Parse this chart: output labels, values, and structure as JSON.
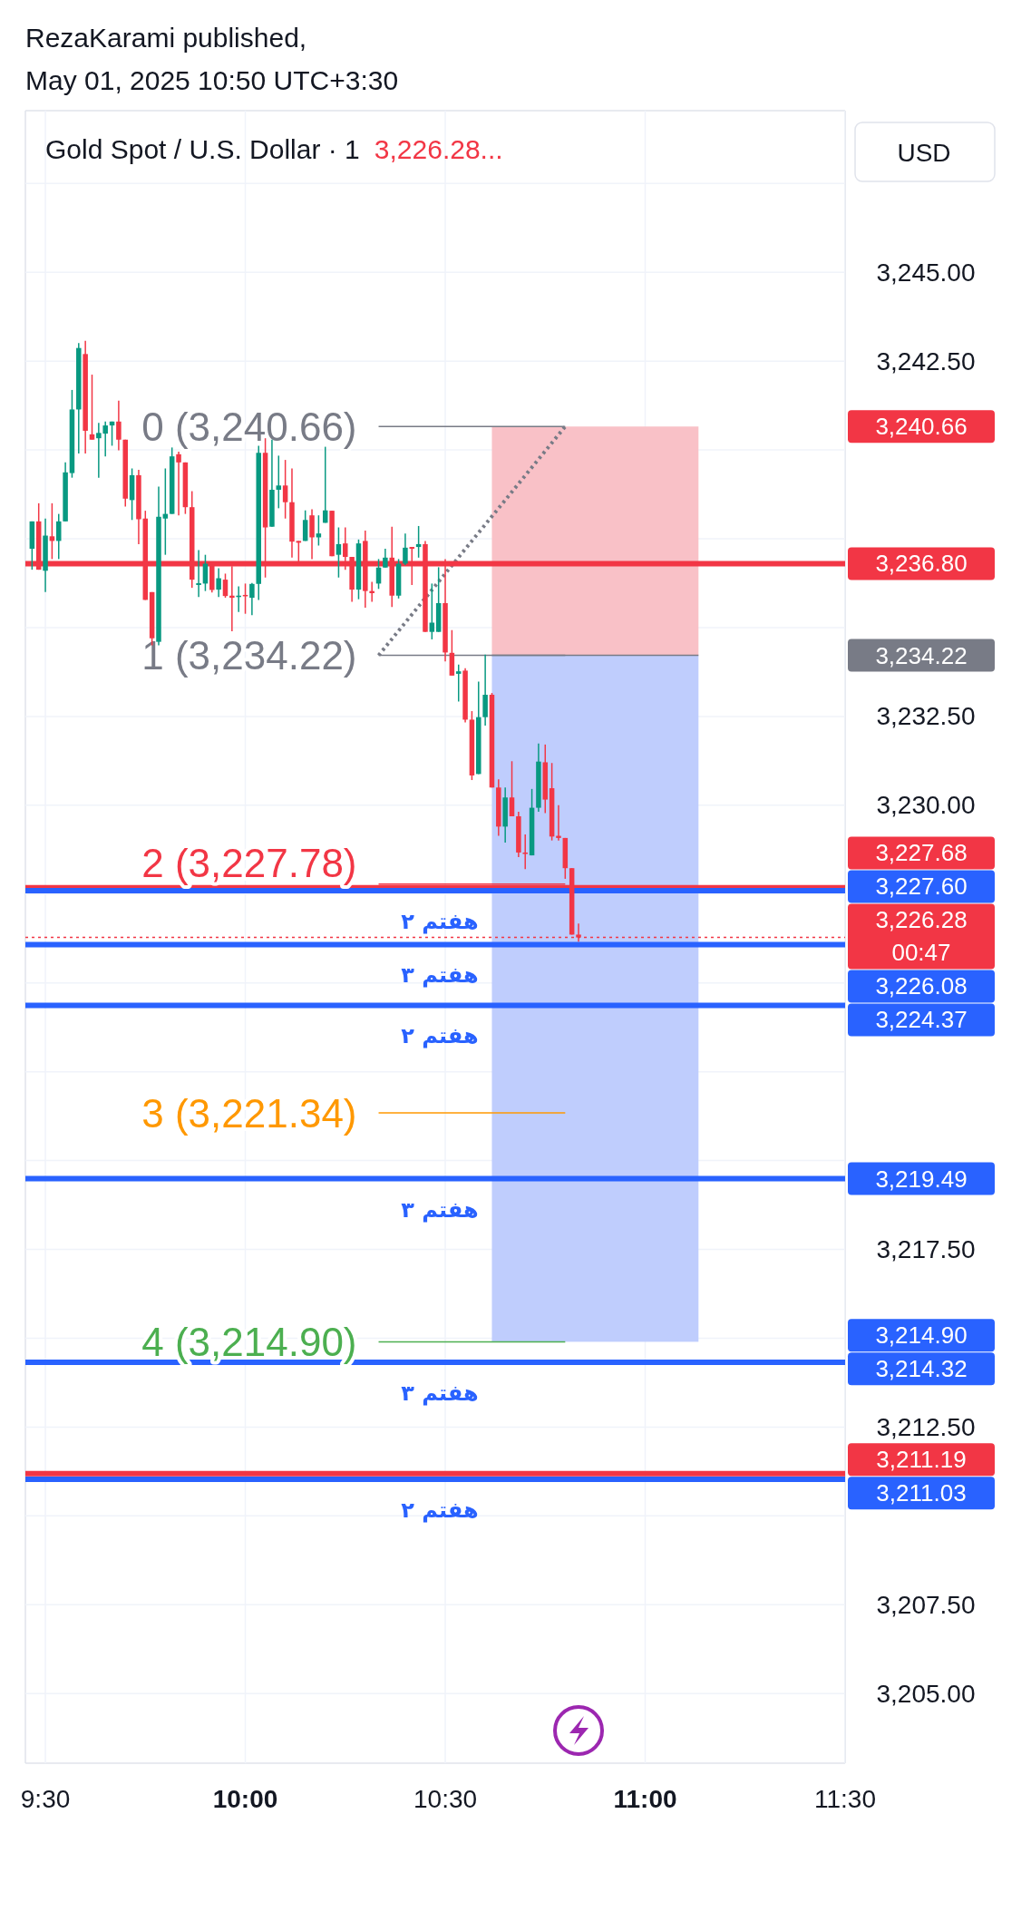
{
  "chart_data": {
    "type": "candlestick",
    "title": "Gold Spot / U.S. Dollar · 1",
    "subtitle": "3,226.28...",
    "ylabel": "USD",
    "annotations": [
      "RezaKarami published,",
      "May 01, 2025 10:50 UTC+3:30",
      {
        "text": "0 (3,240.66)",
        "x": "2025-05-01T10:20",
        "y": 3240.66
      },
      {
        "text": "1 (3,234.22)",
        "x": "2025-05-01T10:20",
        "y": 3234.22
      },
      {
        "text": "2 (3,227.78)",
        "x": "2025-05-01T10:20",
        "y": 3227.78
      },
      {
        "text": "3 (3,221.34)",
        "x": "2025-05-01T10:20",
        "y": 3221.34
      },
      {
        "text": "4 (3,214.90)",
        "x": "2025-05-01T10:20",
        "y": 3214.9
      },
      {
        "text": "هفتم ۲",
        "x": "2025-05-01T10:35",
        "y": 3227.6
      },
      {
        "text": "هفتم ۳",
        "x": "2025-05-01T10:35",
        "y": 3226.08
      },
      {
        "text": "هفتم ۲",
        "x": "2025-05-01T10:35",
        "y": 3224.37
      },
      {
        "text": "هفتم ۳",
        "x": "2025-05-01T10:35",
        "y": 3219.49
      },
      {
        "text": "هفتم ۳",
        "x": "2025-05-01T10:35",
        "y": 3214.32
      },
      {
        "text": "هفتم ۲",
        "x": "2025-05-01T10:35",
        "y": 3211.03
      }
    ],
    "xlim": [
      "2025-05-01T09:27",
      "2025-05-01T11:30"
    ],
    "ylim": [
      3203.04,
      3249.55
    ],
    "xticks": [
      {
        "value": "2025-05-01T09:30",
        "label": "9:30"
      },
      {
        "value": "2025-05-01T10:00",
        "label": "10:00"
      },
      {
        "value": "2025-05-01T10:30",
        "label": "10:30"
      },
      {
        "value": "2025-05-01T11:00",
        "label": "11:00"
      },
      {
        "value": "2025-05-01T11:30",
        "label": "11:30"
      }
    ],
    "yticks": [
      {
        "value": 3205,
        "label": "3,205.00"
      },
      {
        "value": 3207.5,
        "label": "3,207.50"
      },
      {
        "value": 3210,
        "label": null
      },
      {
        "value": 3212.5,
        "label": "3,212.50"
      },
      {
        "value": 3215,
        "label": null
      },
      {
        "value": 3217.5,
        "label": "3,217.50"
      },
      {
        "value": 3220,
        "label": null
      },
      {
        "value": 3222.5,
        "label": null
      },
      {
        "value": 3225,
        "label": null
      },
      {
        "value": 3227.5,
        "label": null
      },
      {
        "value": 3230,
        "label": "3,230.00"
      },
      {
        "value": 3232.5,
        "label": "3,232.50"
      },
      {
        "value": 3235,
        "label": null
      },
      {
        "value": 3237.5,
        "label": null
      },
      {
        "value": 3240,
        "label": null
      },
      {
        "value": 3242.5,
        "label": "3,242.50"
      },
      {
        "value": 3245,
        "label": "3,245.00"
      },
      {
        "value": 3247.5,
        "label": null
      }
    ],
    "grid": true,
    "x": [
      "2025-05-01T09:28",
      "2025-05-01T09:29",
      "2025-05-01T09:30",
      "2025-05-01T09:31",
      "2025-05-01T09:32",
      "2025-05-01T09:33",
      "2025-05-01T09:34",
      "2025-05-01T09:35",
      "2025-05-01T09:36",
      "2025-05-01T09:37",
      "2025-05-01T09:38",
      "2025-05-01T09:39",
      "2025-05-01T09:40",
      "2025-05-01T09:41",
      "2025-05-01T09:42",
      "2025-05-01T09:43",
      "2025-05-01T09:44",
      "2025-05-01T09:45",
      "2025-05-01T09:46",
      "2025-05-01T09:47",
      "2025-05-01T09:48",
      "2025-05-01T09:49",
      "2025-05-01T09:50",
      "2025-05-01T09:51",
      "2025-05-01T09:52",
      "2025-05-01T09:53",
      "2025-05-01T09:54",
      "2025-05-01T09:55",
      "2025-05-01T09:56",
      "2025-05-01T09:57",
      "2025-05-01T09:58",
      "2025-05-01T09:59",
      "2025-05-01T10:00",
      "2025-05-01T10:01",
      "2025-05-01T10:02",
      "2025-05-01T10:03",
      "2025-05-01T10:04",
      "2025-05-01T10:05",
      "2025-05-01T10:06",
      "2025-05-01T10:07",
      "2025-05-01T10:08",
      "2025-05-01T10:09",
      "2025-05-01T10:10",
      "2025-05-01T10:11",
      "2025-05-01T10:12",
      "2025-05-01T10:13",
      "2025-05-01T10:14",
      "2025-05-01T10:15",
      "2025-05-01T10:16",
      "2025-05-01T10:17",
      "2025-05-01T10:18",
      "2025-05-01T10:19",
      "2025-05-01T10:20",
      "2025-05-01T10:21",
      "2025-05-01T10:22",
      "2025-05-01T10:23",
      "2025-05-01T10:24",
      "2025-05-01T10:25",
      "2025-05-01T10:26",
      "2025-05-01T10:27",
      "2025-05-01T10:28",
      "2025-05-01T10:29",
      "2025-05-01T10:30",
      "2025-05-01T10:31",
      "2025-05-01T10:32",
      "2025-05-01T10:33",
      "2025-05-01T10:34",
      "2025-05-01T10:35",
      "2025-05-01T10:36",
      "2025-05-01T10:37",
      "2025-05-01T10:38",
      "2025-05-01T10:39",
      "2025-05-01T10:40",
      "2025-05-01T10:41",
      "2025-05-01T10:42",
      "2025-05-01T10:43",
      "2025-05-01T10:44",
      "2025-05-01T10:45",
      "2025-05-01T10:46",
      "2025-05-01T10:47",
      "2025-05-01T10:48",
      "2025-05-01T10:49",
      "2025-05-01T10:50"
    ],
    "ohlc": [
      [
        3237.22,
        3237.99,
        3236.63,
        3237.99
      ],
      [
        3237.99,
        3238.5,
        3236.63,
        3236.63
      ],
      [
        3236.6,
        3238.07,
        3236.0,
        3237.59
      ],
      [
        3237.57,
        3238.5,
        3236.93,
        3237.44
      ],
      [
        3237.44,
        3238.2,
        3236.93,
        3237.99
      ],
      [
        3237.99,
        3239.65,
        3237.99,
        3239.37
      ],
      [
        3239.35,
        3241.69,
        3239.22,
        3241.14
      ],
      [
        3241.14,
        3243.01,
        3239.9,
        3242.87
      ],
      [
        3242.7,
        3243.07,
        3239.9,
        3240.54
      ],
      [
        3240.44,
        3242.12,
        3240.29,
        3240.29
      ],
      [
        3240.33,
        3240.76,
        3239.22,
        3240.48
      ],
      [
        3240.46,
        3240.8,
        3239.82,
        3240.69
      ],
      [
        3240.69,
        3240.8,
        3240.12,
        3240.8
      ],
      [
        3240.8,
        3241.39,
        3239.99,
        3240.29
      ],
      [
        3240.29,
        3240.29,
        3238.41,
        3238.63
      ],
      [
        3238.59,
        3239.48,
        3238.03,
        3239.29
      ],
      [
        3239.29,
        3239.44,
        3237.35,
        3238.05
      ],
      [
        3238.07,
        3238.29,
        3235.78,
        3235.78
      ],
      [
        3236.0,
        3236.0,
        3234.5,
        3234.7
      ],
      [
        3234.6,
        3238.97,
        3234.5,
        3238.12
      ],
      [
        3238.07,
        3239.48,
        3237.05,
        3238.2
      ],
      [
        3238.2,
        3240.07,
        3238.2,
        3239.82
      ],
      [
        3239.88,
        3239.95,
        3238.16,
        3239.65
      ],
      [
        3239.65,
        3239.65,
        3238.2,
        3238.39
      ],
      [
        3238.39,
        3238.84,
        3236.12,
        3236.35
      ],
      [
        3236.2,
        3237.18,
        3235.86,
        3236.25
      ],
      [
        3236.24,
        3237.05,
        3236.03,
        3236.8
      ],
      [
        3236.77,
        3236.77,
        3235.99,
        3236.06
      ],
      [
        3236.07,
        3236.67,
        3235.86,
        3236.39
      ],
      [
        3236.35,
        3236.52,
        3235.84,
        3235.89
      ],
      [
        3235.9,
        3236.73,
        3234.9,
        3235.84
      ],
      [
        3235.86,
        3236.16,
        3235.44,
        3235.9
      ],
      [
        3235.92,
        3236.24,
        3235.39,
        3235.89
      ],
      [
        3235.84,
        3236.26,
        3235.35,
        3236.23
      ],
      [
        3236.23,
        3240.12,
        3235.78,
        3239.92
      ],
      [
        3239.92,
        3240.33,
        3236.41,
        3237.82
      ],
      [
        3237.84,
        3240.29,
        3237.84,
        3238.88
      ],
      [
        3238.88,
        3239.84,
        3238.36,
        3239.0
      ],
      [
        3239.0,
        3239.72,
        3238.07,
        3238.53
      ],
      [
        3238.53,
        3239.48,
        3236.97,
        3237.42
      ],
      [
        3237.44,
        3237.44,
        3236.74,
        3237.39
      ],
      [
        3237.44,
        3238.3,
        3237.44,
        3238.03
      ],
      [
        3238.16,
        3238.33,
        3236.93,
        3237.54
      ],
      [
        3237.54,
        3238.16,
        3237.31,
        3237.65
      ],
      [
        3237.95,
        3240.09,
        3237.95,
        3238.3
      ],
      [
        3238.29,
        3238.29,
        3237.01,
        3237.01
      ],
      [
        3237.05,
        3237.82,
        3236.41,
        3237.35
      ],
      [
        3237.37,
        3237.82,
        3236.63,
        3236.99
      ],
      [
        3236.99,
        3236.99,
        3235.73,
        3236.07
      ],
      [
        3236.07,
        3237.48,
        3235.8,
        3237.37
      ],
      [
        3237.44,
        3237.73,
        3235.56,
        3236.03
      ],
      [
        3236.03,
        3236.29,
        3235.73,
        3235.97
      ],
      [
        3236.24,
        3236.93,
        3236.09,
        3236.69
      ],
      [
        3236.69,
        3237.22,
        3236.69,
        3236.97
      ],
      [
        3236.97,
        3237.84,
        3235.58,
        3235.9
      ],
      [
        3235.9,
        3236.93,
        3235.82,
        3236.8
      ],
      [
        3236.8,
        3237.65,
        3236.76,
        3237.25
      ],
      [
        3237.27,
        3237.27,
        3236.2,
        3237.22
      ],
      [
        3237.27,
        3237.86,
        3236.97,
        3237.35
      ],
      [
        3237.35,
        3237.44,
        3234.88,
        3234.88
      ],
      [
        3234.88,
        3236.24,
        3234.67,
        3235.14
      ],
      [
        3234.88,
        3236.7,
        3234.88,
        3235.69
      ],
      [
        3235.69,
        3236.93,
        3234.05,
        3234.3
      ],
      [
        3234.29,
        3234.93,
        3233.65,
        3233.65
      ],
      [
        3233.7,
        3233.96,
        3232.92,
        3233.77
      ],
      [
        3233.79,
        3233.86,
        3232.33,
        3232.41
      ],
      [
        3232.41,
        3232.65,
        3230.71,
        3230.84
      ],
      [
        3230.88,
        3233.48,
        3230.88,
        3232.48
      ],
      [
        3232.48,
        3234.24,
        3232.24,
        3233.11
      ],
      [
        3233.11,
        3233.16,
        3230.5,
        3230.5
      ],
      [
        3230.5,
        3230.73,
        3229.14,
        3229.4
      ],
      [
        3229.4,
        3230.5,
        3228.95,
        3230.22
      ],
      [
        3230.22,
        3231.24,
        3229.69,
        3229.69
      ],
      [
        3229.69,
        3229.82,
        3228.54,
        3228.67
      ],
      [
        3228.67,
        3229.18,
        3228.2,
        3228.63
      ],
      [
        3228.59,
        3230.46,
        3228.59,
        3229.93
      ],
      [
        3229.93,
        3231.74,
        3229.82,
        3231.23
      ],
      [
        3231.21,
        3231.71,
        3229.78,
        3230.16
      ],
      [
        3230.48,
        3231.19,
        3229.01,
        3229.12
      ],
      [
        3229.14,
        3230.0,
        3229.01,
        3229.08
      ],
      [
        3229.08,
        3229.08,
        3227.93,
        3228.23
      ],
      [
        3228.23,
        3228.23,
        3226.36,
        3226.36
      ],
      [
        3226.36,
        3226.67,
        3226.16,
        3226.28
      ]
    ],
    "colors": [
      "#089981",
      "#f23645",
      "#089981",
      "#f23645",
      "#089981",
      "#089981",
      "#089981",
      "#089981",
      "#f23645",
      "#f23645",
      "#089981",
      "#089981",
      "#089981",
      "#f23645",
      "#f23645",
      "#089981",
      "#f23645",
      "#f23645",
      "#f23645",
      "#089981",
      "#089981",
      "#089981",
      "#f23645",
      "#f23645",
      "#f23645",
      "#089981",
      "#089981",
      "#f23645",
      "#089981",
      "#f23645",
      "#f23645",
      "#089981",
      "#f23645",
      "#089981",
      "#089981",
      "#f23645",
      "#089981",
      "#089981",
      "#f23645",
      "#f23645",
      "#f23645",
      "#089981",
      "#f23645",
      "#089981",
      "#089981",
      "#f23645",
      "#089981",
      "#f23645",
      "#f23645",
      "#089981",
      "#f23645",
      "#f23645",
      "#089981",
      "#089981",
      "#f23645",
      "#089981",
      "#089981",
      "#f23645",
      "#089981",
      "#f23645",
      "#089981",
      "#089981",
      "#f23645",
      "#f23645",
      "#089981",
      "#f23645",
      "#f23645",
      "#089981",
      "#089981",
      "#f23645",
      "#f23645",
      "#089981",
      "#f23645",
      "#f23645",
      "#f23645",
      "#089981",
      "#089981",
      "#f23645",
      "#f23645",
      "#f23645",
      "#f23645",
      "#f23645",
      "#f23645"
    ],
    "y2lim": [
      3203.04,
      3249.55
    ],
    "y2ticks": [
      {
        "value": 3240.66,
        "label": "3,240.66"
      },
      {
        "value": 3234.22,
        "label": "3,234.22"
      },
      {
        "value": 3214.9,
        "label": "3,214.90"
      }
    ],
    "series": [
      {
        "type": "bar",
        "x": [
          "2025-05-01T10:52:30"
        ],
        "base": [
          3234.22
        ],
        "values": [
          6.44
        ],
        "color": "#f9c1c7"
      },
      {
        "type": "bar",
        "x": [
          "2025-05-01T10:52:30"
        ],
        "base": [
          3214.9
        ],
        "values": [
          19.32
        ],
        "color": "#bfcdfd"
      },
      {
        "type": "line",
        "x": [
          "2025-05-01T10:37",
          "2025-05-01T11:08"
        ],
        "values": [
          3234.22,
          3234.22
        ],
        "color": "#787b86",
        "line_style": "solid"
      },
      {
        "type": "line",
        "x": [
          "2025-05-01T10:20",
          "2025-05-01T10:48"
        ],
        "values": [
          3234.22,
          3240.66
        ],
        "color": "#787b86",
        "line_style": "dotted"
      },
      {
        "type": "line",
        "x": [
          "2025-05-01T10:20",
          "2025-05-01T10:48"
        ],
        "values": [
          3240.66,
          3240.66
        ],
        "color": "#787b86",
        "line_style": "solid"
      },
      {
        "type": "line",
        "x": [
          "2025-05-01T10:20",
          "2025-05-01T10:48"
        ],
        "values": [
          3234.22,
          3234.22
        ],
        "color": "#787b86",
        "line_style": "solid"
      },
      {
        "type": "line",
        "x": [
          "2025-05-01T10:20",
          "2025-05-01T10:48"
        ],
        "values": [
          3227.78,
          3227.78
        ],
        "color": "#f23645",
        "line_style": "solid"
      },
      {
        "type": "line",
        "x": [
          "2025-05-01T10:20",
          "2025-05-01T10:48"
        ],
        "values": [
          3221.34,
          3221.34
        ],
        "color": "#ff9800",
        "line_style": "solid"
      },
      {
        "type": "line",
        "x": [
          "2025-05-01T10:20",
          "2025-05-01T10:48"
        ],
        "values": [
          3214.9,
          3214.9
        ],
        "color": "#4caf50",
        "line_style": "solid"
      }
    ],
    "ref_lines": [
      {
        "axis": "y",
        "value": 3236.8,
        "color": "#f23645",
        "label": "3,236.80"
      },
      {
        "axis": "y",
        "value": 3227.68,
        "color": "#f23645",
        "label": "3,227.68"
      },
      {
        "axis": "y",
        "value": 3227.6,
        "color": "#2962ff",
        "label": "3,227.60"
      },
      {
        "axis": "y",
        "value": 3226.28,
        "color": "#f23645",
        "line_style": "dotted",
        "label": "3,226.28\n00:47"
      },
      {
        "axis": "y",
        "value": 3226.08,
        "color": "#2962ff",
        "label": "3,226.08"
      },
      {
        "axis": "y",
        "value": 3224.37,
        "color": "#2962ff",
        "label": "3,224.37"
      },
      {
        "axis": "y",
        "value": 3219.49,
        "color": "#2962ff",
        "label": "3,219.49"
      },
      {
        "axis": "y",
        "value": 3214.32,
        "color": "#2962ff",
        "label": "3,214.32"
      },
      {
        "axis": "y",
        "value": 3211.19,
        "color": "#f23645",
        "label": "3,211.19"
      },
      {
        "axis": "y",
        "value": 3211.03,
        "color": "#2962ff",
        "label": "3,211.03"
      }
    ]
  }
}
